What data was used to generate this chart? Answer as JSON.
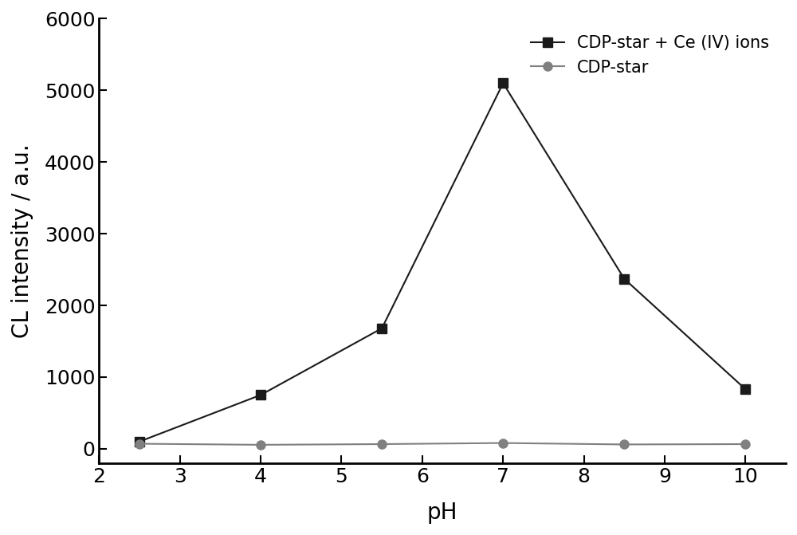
{
  "series1_label": "CDP-star + Ce (IV) ions",
  "series1_x": [
    2.5,
    4.0,
    5.5,
    7.0,
    8.5,
    10.0
  ],
  "series1_y": [
    100,
    750,
    1680,
    5100,
    2370,
    830
  ],
  "series1_color": "#1a1a1a",
  "series1_marker": "s",
  "series1_markersize": 8,
  "series1_linewidth": 1.5,
  "series2_label": "CDP-star",
  "series2_x": [
    2.5,
    4.0,
    5.5,
    7.0,
    8.5,
    10.0
  ],
  "series2_y": [
    70,
    55,
    65,
    80,
    60,
    65
  ],
  "series2_color": "#808080",
  "series2_marker": "o",
  "series2_markersize": 8,
  "series2_linewidth": 1.5,
  "xlabel": "pH",
  "ylabel": "CL intensity / a.u.",
  "xlim": [
    2.0,
    10.5
  ],
  "ylim": [
    -200,
    6000
  ],
  "yticks": [
    0,
    1000,
    2000,
    3000,
    4000,
    5000,
    6000
  ],
  "xticks": [
    2,
    3,
    4,
    5,
    6,
    7,
    8,
    9,
    10
  ],
  "xtick_labels": [
    "2",
    "3",
    "4",
    "5",
    "6",
    "7",
    "8",
    "9",
    "10"
  ],
  "legend_loc": "upper right",
  "label_fontsize": 20,
  "tick_fontsize": 18,
  "legend_fontsize": 15,
  "background_color": "#ffffff",
  "figure_width": 10.0,
  "figure_height": 6.71
}
